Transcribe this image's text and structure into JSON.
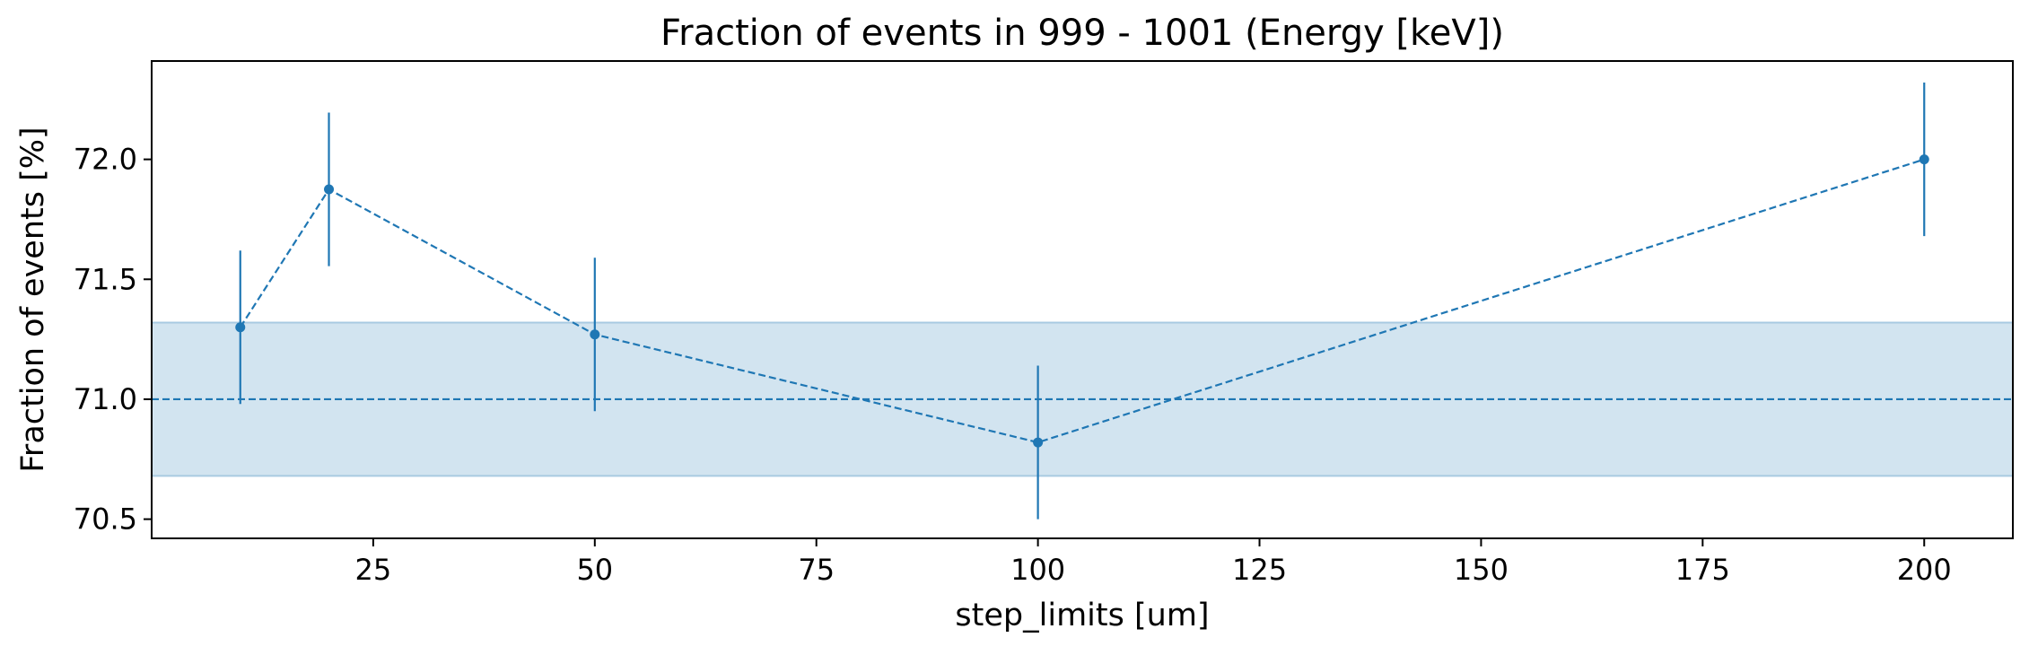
{
  "chart_data": {
    "type": "line",
    "title": "Fraction of events in 999 - 1001 (Energy [keV])",
    "xlabel": "step_limits [um]",
    "ylabel": "Fraction of events [%]",
    "xlim": [
      0,
      210
    ],
    "ylim": [
      70.42,
      72.41
    ],
    "xticks": [
      25,
      50,
      75,
      100,
      125,
      150,
      175,
      200
    ],
    "xtick_labels": [
      "25",
      "50",
      "75",
      "100",
      "125",
      "150",
      "175",
      "200"
    ],
    "yticks": [
      70.5,
      71.0,
      71.5,
      72.0
    ],
    "ytick_labels": [
      "70.5",
      "71.0",
      "71.5",
      "72.0"
    ],
    "grid": false,
    "series": [
      {
        "x": [
          10,
          20,
          50,
          100,
          200
        ],
        "y": [
          71.3,
          71.875,
          71.27,
          70.82,
          72.0
        ],
        "yerr": [
          0.32,
          0.32,
          0.32,
          0.32,
          0.32
        ],
        "color": "#1f77b4",
        "linestyle": "dashed",
        "marker": "circle"
      }
    ],
    "reference": {
      "y": 71.0,
      "band": [
        70.68,
        71.32
      ],
      "color": "#1f77b4",
      "band_opacity": 0.2,
      "linestyle": "dashed"
    }
  }
}
